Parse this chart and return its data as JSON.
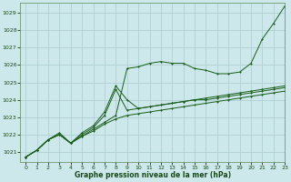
{
  "title": "Graphe pression niveau de la mer (hPa)",
  "bg_color": "#cce8ea",
  "grid_color": "#b0d0d4",
  "line_color": "#1a5c1a",
  "xlim": [
    -0.5,
    23
  ],
  "ylim": [
    1020.4,
    1029.6
  ],
  "xtick_labels": [
    "0",
    "1",
    "2",
    "3",
    "4",
    "5",
    "6",
    "7",
    "8",
    "9",
    "10",
    "11",
    "12",
    "13",
    "14",
    "15",
    "16",
    "17",
    "18",
    "19",
    "20",
    "21",
    "22",
    "23"
  ],
  "yticks": [
    1021,
    1022,
    1023,
    1024,
    1025,
    1026,
    1027,
    1028,
    1029
  ],
  "s1": [
    1020.7,
    1021.1,
    1021.7,
    1022.1,
    1021.5,
    1021.9,
    1022.3,
    1022.7,
    1023.1,
    1025.8,
    1025.9,
    1026.1,
    1026.2,
    1026.1,
    1026.1,
    1025.8,
    1025.7,
    1025.5,
    1025.5,
    1025.6,
    1026.1,
    1027.5,
    1028.4,
    1029.4
  ],
  "s2": [
    1020.7,
    1021.1,
    1021.7,
    1022.0,
    1021.5,
    1022.1,
    1022.5,
    1023.3,
    1024.8,
    1024.0,
    1023.5,
    1023.6,
    1023.7,
    1023.8,
    1023.9,
    1024.0,
    1024.0,
    1024.1,
    1024.2,
    1024.3,
    1024.4,
    1024.5,
    1024.6,
    1024.7
  ],
  "s3": [
    1020.7,
    1021.1,
    1021.7,
    1022.0,
    1021.5,
    1022.0,
    1022.4,
    1023.1,
    1024.6,
    1023.4,
    1023.5,
    1023.6,
    1023.7,
    1023.8,
    1023.9,
    1024.0,
    1024.1,
    1024.2,
    1024.3,
    1024.4,
    1024.5,
    1024.6,
    1024.7,
    1024.8
  ],
  "s4": [
    1020.7,
    1021.1,
    1021.7,
    1022.0,
    1021.5,
    1021.9,
    1022.2,
    1022.6,
    1022.9,
    1023.1,
    1023.2,
    1023.3,
    1023.4,
    1023.5,
    1023.6,
    1023.7,
    1023.8,
    1023.9,
    1024.0,
    1024.1,
    1024.2,
    1024.3,
    1024.4,
    1024.5
  ]
}
